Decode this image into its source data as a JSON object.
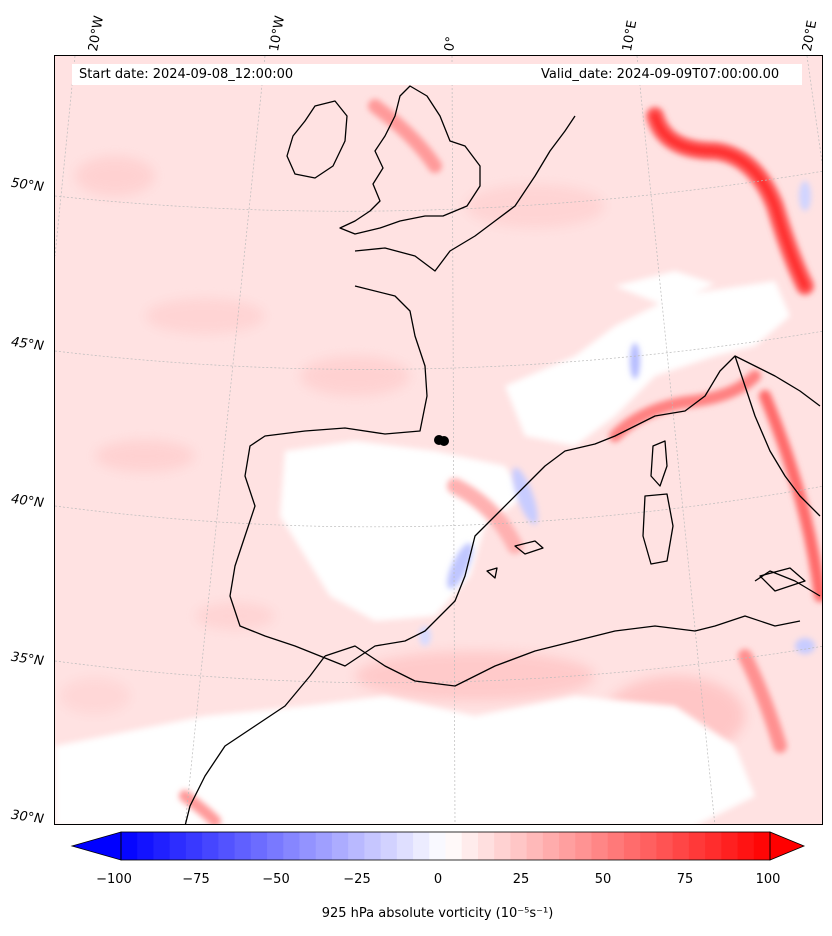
{
  "header": {
    "start_date": "Start date: 2024-09-08_12:00:00",
    "valid_date": "Valid_date: 2024-09-09T07:00:00.00"
  },
  "graticule": {
    "lon_labels": [
      "20°W",
      "10°W",
      "0°",
      "10°E",
      "20°E"
    ],
    "lat_labels": [
      "50°N",
      "45°N",
      "40°N",
      "35°N",
      "30°N"
    ]
  },
  "colorbar": {
    "label": "925 hPa absolute vorticity (10⁻⁵s⁻¹)",
    "ticks": [
      "−100",
      "−75",
      "−50",
      "−25",
      "0",
      "25",
      "50",
      "75",
      "100"
    ],
    "range": [
      -100,
      100
    ],
    "levels": 40,
    "extend": "both",
    "colormap": "bwr",
    "negative_color": "#0000ff",
    "zero_color": "#ffffff",
    "positive_color": "#ff0000"
  },
  "map": {
    "projection": "conic",
    "coastline_color": "#000000",
    "graticule_style": "dotted-gray",
    "marker_color": "#000000"
  }
}
